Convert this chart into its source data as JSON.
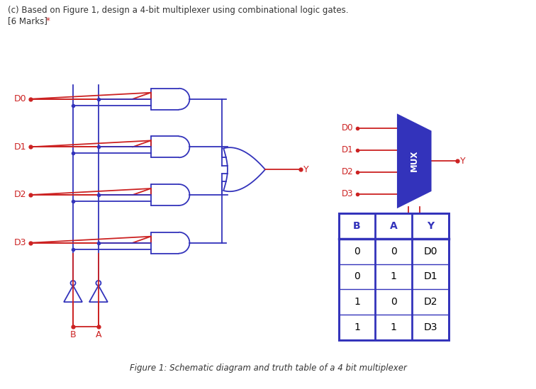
{
  "title_line1": "(c) Based on Figure 1, design a 4-bit multiplexer using combinational logic gates.",
  "title_line2": "[6 Marks]",
  "asterisk": "*",
  "caption": "Figure 1: Schematic diagram and truth table of a 4 bit multiplexer",
  "red": "#cc2222",
  "blue": "#3333bb",
  "bg": "#ffffff",
  "text_color": "#333333",
  "table_header": [
    "B",
    "A",
    "Y"
  ],
  "table_rows": [
    [
      "0",
      "0",
      "D0"
    ],
    [
      "0",
      "1",
      "D1"
    ],
    [
      "1",
      "0",
      "D2"
    ],
    [
      "1",
      "1",
      "D3"
    ]
  ],
  "input_labels": [
    "D0",
    "D1",
    "D2",
    "D3"
  ],
  "figsize": [
    7.56,
    5.49
  ],
  "dpi": 100
}
